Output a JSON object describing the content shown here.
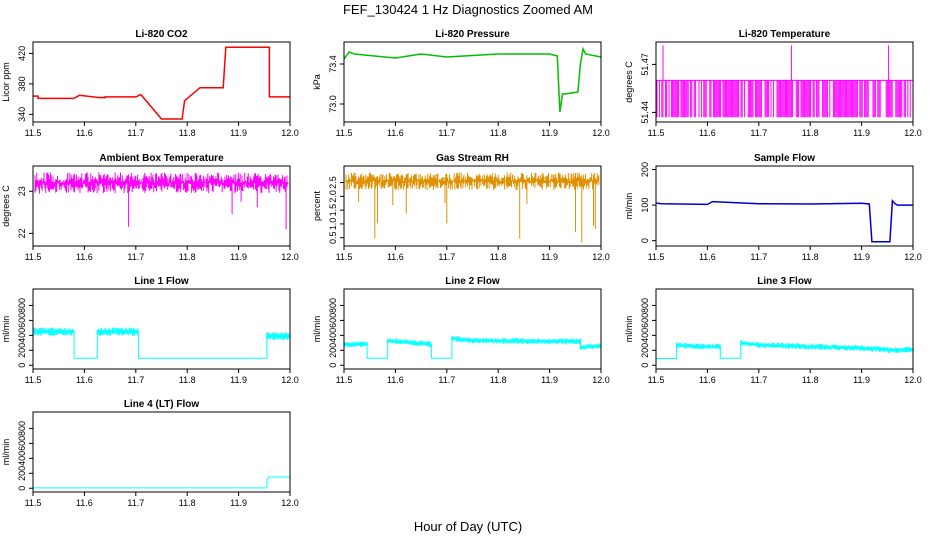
{
  "title": "FEF_130424  1 Hz Diagnostics Zoomed AM",
  "xlabel": "Hour of Day (UTC)",
  "chart_data": [
    {
      "type": "line",
      "title": "Li-820 CO2",
      "ylabel": "Licor ppm",
      "color": "#ff0000",
      "xlim": [
        11.5,
        12.0
      ],
      "ylim": [
        330,
        435
      ],
      "xticks": [
        "11.5",
        "11.6",
        "11.7",
        "11.8",
        "11.9",
        "12.0"
      ],
      "yticks": [
        340,
        380,
        420
      ],
      "series": [
        {
          "x": [
            11.5,
            11.51,
            11.51,
            11.58,
            11.59,
            11.59,
            11.63,
            11.64,
            11.64,
            11.7,
            11.71,
            11.71,
            11.75,
            11.755,
            11.755,
            11.79,
            11.795,
            11.795,
            11.825,
            11.83,
            11.83,
            11.87,
            11.875,
            11.875,
            11.955,
            11.96,
            11.96,
            12.0
          ],
          "y": [
            364,
            364,
            361,
            361,
            365,
            365,
            362,
            362,
            363,
            363,
            366,
            366,
            334,
            334,
            334,
            334,
            358,
            358,
            375,
            375,
            375,
            375,
            428,
            428,
            428,
            428,
            363,
            363
          ]
        }
      ]
    },
    {
      "type": "line",
      "title": "Li-820 Pressure",
      "ylabel": "kPa",
      "color": "#00c000",
      "xlim": [
        11.5,
        12.0
      ],
      "ylim": [
        72.82,
        73.62
      ],
      "xticks": [
        "11.5",
        "11.6",
        "11.7",
        "11.8",
        "11.9",
        "12.0"
      ],
      "yticks": [
        73.0,
        73.4
      ],
      "series": [
        {
          "x": [
            11.5,
            11.51,
            11.52,
            11.6,
            11.65,
            11.7,
            11.8,
            11.9,
            11.915,
            11.92,
            11.925,
            11.93,
            11.955,
            11.96,
            11.965,
            11.97,
            12.0
          ],
          "y": [
            73.45,
            73.52,
            73.5,
            73.46,
            73.5,
            73.47,
            73.5,
            73.5,
            73.48,
            72.92,
            73.1,
            73.1,
            73.12,
            73.4,
            73.55,
            73.5,
            73.47
          ]
        }
      ]
    },
    {
      "type": "line",
      "title": "Li-820 Temperature",
      "ylabel": "degrees C",
      "color": "#ff00ff",
      "xlim": [
        11.5,
        12.0
      ],
      "ylim": [
        51.434,
        51.484
      ],
      "xticks": [
        "11.5",
        "11.6",
        "11.7",
        "11.8",
        "11.9",
        "12.0"
      ],
      "yticks": [
        51.44,
        51.47
      ],
      "series": [
        {
          "x": [
            11.5,
            12.0
          ],
          "y": [
            51.46,
            51.46
          ]
        }
      ]
    },
    {
      "type": "line",
      "title": "Ambient Box Temperature",
      "ylabel": "degrees C",
      "color": "#ff00ff",
      "xlim": [
        11.5,
        12.0
      ],
      "ylim": [
        21.7,
        23.6
      ],
      "xticks": [
        "11.5",
        "11.6",
        "11.7",
        "11.8",
        "11.9",
        "12.0"
      ],
      "yticks": [
        22.0,
        23.0
      ],
      "series": [
        {
          "x": [
            11.5,
            12.0
          ],
          "y": [
            23.2,
            23.2
          ]
        }
      ]
    },
    {
      "type": "line",
      "title": "Gas Stream RH",
      "ylabel": "percent",
      "color": "#e09000",
      "xlim": [
        11.5,
        12.0
      ],
      "ylim": [
        0.2,
        3.1
      ],
      "xticks": [
        "11.5",
        "11.6",
        "11.7",
        "11.8",
        "11.9",
        "12.0"
      ],
      "yticks": [
        0.5,
        1.0,
        1.5,
        2.0,
        2.5
      ],
      "series": [
        {
          "x": [
            11.5,
            12.0
          ],
          "y": [
            2.55,
            2.55
          ]
        }
      ]
    },
    {
      "type": "line",
      "title": "Sample Flow",
      "ylabel": "ml/min",
      "color": "#0000cc",
      "xlim": [
        11.5,
        12.0
      ],
      "ylim": [
        -15,
        210
      ],
      "xticks": [
        "11.5",
        "11.6",
        "11.7",
        "11.8",
        "11.9",
        "12.0"
      ],
      "yticks": [
        0,
        100,
        200
      ],
      "series": [
        {
          "x": [
            11.5,
            11.51,
            11.6,
            11.61,
            11.7,
            11.8,
            11.9,
            11.915,
            11.92,
            11.955,
            11.96,
            11.965,
            11.97,
            12.0
          ],
          "y": [
            106,
            104,
            102,
            110,
            104,
            103,
            105,
            103,
            -3,
            -3,
            112,
            104,
            100,
            100
          ]
        }
      ]
    },
    {
      "type": "line",
      "title": "Line 1 Flow",
      "ylabel": "ml/min",
      "color": "#00ffff",
      "xlim": [
        11.5,
        12.0
      ],
      "ylim": [
        -50,
        1020
      ],
      "xticks": [
        "11.5",
        "11.6",
        "11.7",
        "11.8",
        "11.9",
        "12.0"
      ],
      "yticks": [
        0,
        200,
        400,
        600,
        800
      ],
      "series": [
        {
          "x": [
            11.5,
            11.58,
            11.58,
            11.625,
            11.625,
            11.705,
            11.705,
            11.955,
            11.955,
            12.0
          ],
          "y": [
            450,
            450,
            95,
            95,
            450,
            450,
            95,
            95,
            390,
            390
          ]
        }
      ]
    },
    {
      "type": "line",
      "title": "Line 2 Flow",
      "ylabel": "ml/min",
      "color": "#00ffff",
      "xlim": [
        11.5,
        12.0
      ],
      "ylim": [
        -50,
        1020
      ],
      "xticks": [
        "11.5",
        "11.6",
        "11.7",
        "11.8",
        "11.9",
        "12.0"
      ],
      "yticks": [
        0,
        200,
        400,
        600,
        800
      ],
      "series": [
        {
          "x": [
            11.5,
            11.545,
            11.545,
            11.585,
            11.585,
            11.67,
            11.67,
            11.71,
            11.71,
            11.75,
            11.9,
            11.96,
            11.96,
            12.0
          ],
          "y": [
            280,
            280,
            95,
            95,
            330,
            280,
            95,
            95,
            360,
            330,
            320,
            320,
            240,
            260
          ]
        }
      ]
    },
    {
      "type": "line",
      "title": "Line 3 Flow",
      "ylabel": "ml/min",
      "color": "#00ffff",
      "xlim": [
        11.5,
        12.0
      ],
      "ylim": [
        -50,
        1020
      ],
      "xticks": [
        "11.5",
        "11.6",
        "11.7",
        "11.8",
        "11.9",
        "12.0"
      ],
      "yticks": [
        0,
        200,
        400,
        600,
        800
      ],
      "series": [
        {
          "x": [
            11.5,
            11.54,
            11.54,
            11.58,
            11.625,
            11.625,
            11.665,
            11.665,
            11.7,
            11.8,
            11.9,
            11.95,
            11.955,
            12.0
          ],
          "y": [
            90,
            90,
            270,
            250,
            250,
            95,
            95,
            300,
            270,
            250,
            230,
            210,
            200,
            210
          ]
        }
      ]
    },
    {
      "type": "line",
      "title": "Line 4 (LT) Flow",
      "ylabel": "ml/min",
      "color": "#00ffff",
      "xlim": [
        11.5,
        12.0
      ],
      "ylim": [
        -50,
        1020
      ],
      "xticks": [
        "11.5",
        "11.6",
        "11.7",
        "11.8",
        "11.9",
        "12.0"
      ],
      "yticks": [
        0,
        200,
        400,
        600,
        800
      ],
      "series": [
        {
          "x": [
            11.5,
            11.955,
            11.955,
            11.96,
            12.0
          ],
          "y": [
            5,
            5,
            110,
            150,
            150
          ]
        }
      ]
    }
  ]
}
